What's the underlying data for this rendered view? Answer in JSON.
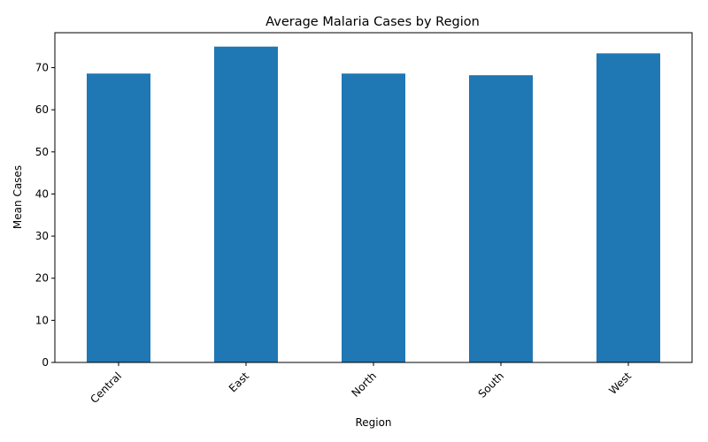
{
  "chart_data": {
    "type": "bar",
    "title": "Average Malaria Cases by Region",
    "xlabel": "Region",
    "ylabel": "Mean Cases",
    "categories": [
      "Central",
      "East",
      "North",
      "South",
      "West"
    ],
    "values": [
      68.6,
      75.0,
      68.6,
      68.2,
      73.4
    ],
    "ylim": [
      0,
      78.3
    ],
    "yticks": [
      0,
      10,
      20,
      30,
      40,
      50,
      60,
      70
    ],
    "bar_color": "#1f77b4",
    "grid": false,
    "legend": "none"
  }
}
